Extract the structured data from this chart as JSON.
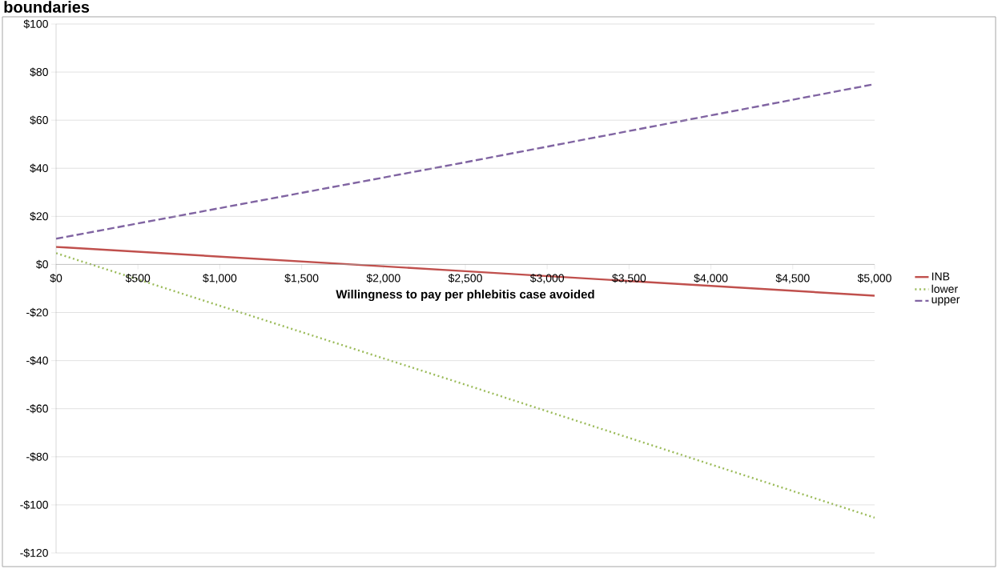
{
  "chart_data": {
    "type": "line",
    "title": "boundaries",
    "xlabel": "Willingness  to pay per phlebitis case avoided",
    "x": [
      0,
      2500,
      5000
    ],
    "series": [
      {
        "name": "INB",
        "color": "#c0504d",
        "values": [
          7.3,
          -2.8,
          -13
        ],
        "line_style": "solid"
      },
      {
        "name": "lower",
        "color": "#9bbb59",
        "values": [
          4.7,
          -50,
          -105.3
        ],
        "line_style": "dotted"
      },
      {
        "name": "upper",
        "color": "#8064a2",
        "values": [
          10.7,
          42.5,
          75
        ],
        "line_style": "dashed"
      }
    ],
    "xlim": [
      0,
      5000
    ],
    "ylim": [
      -120,
      100
    ],
    "xticks": [
      {
        "value": 0,
        "label": "$0"
      },
      {
        "value": 500,
        "label": "$500"
      },
      {
        "value": 1000,
        "label": "$1,000"
      },
      {
        "value": 1500,
        "label": "$1,500"
      },
      {
        "value": 2000,
        "label": "$2,000"
      },
      {
        "value": 2500,
        "label": "$2,500"
      },
      {
        "value": 3000,
        "label": "$3,000"
      },
      {
        "value": 3500,
        "label": "$3,500"
      },
      {
        "value": 4000,
        "label": "$4,000"
      },
      {
        "value": 4500,
        "label": "$4,500"
      },
      {
        "value": 5000,
        "label": "$5,000"
      }
    ],
    "yticks": [
      {
        "value": -120,
        "label": "-$120"
      },
      {
        "value": -100,
        "label": "-$100"
      },
      {
        "value": -80,
        "label": "-$80"
      },
      {
        "value": -60,
        "label": "-$60"
      },
      {
        "value": -40,
        "label": "-$40"
      },
      {
        "value": -20,
        "label": "-$20"
      },
      {
        "value": 0,
        "label": "$0"
      },
      {
        "value": 20,
        "label": "$20"
      },
      {
        "value": 40,
        "label": "$40"
      },
      {
        "value": 60,
        "label": "$60"
      },
      {
        "value": 80,
        "label": "$80"
      },
      {
        "value": 100,
        "label": "$100"
      }
    ],
    "grid": "y",
    "legend": "right",
    "marker": "none"
  }
}
